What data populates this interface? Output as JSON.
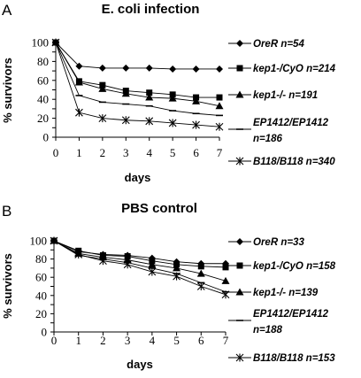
{
  "chart_data": [
    {
      "panel": "A",
      "type": "line",
      "title": "E. coli infection",
      "xlabel": "days",
      "ylabel": "% survivors",
      "x": [
        0,
        1,
        2,
        3,
        4,
        5,
        6,
        7
      ],
      "xlim": [
        0,
        7
      ],
      "ylim": [
        0,
        100
      ],
      "yticks": [
        0,
        10,
        20,
        30,
        40,
        50,
        60,
        70,
        80,
        90,
        100
      ],
      "grid": false,
      "legend_position": "right",
      "series": [
        {
          "name": "OreR n=54",
          "marker": "diamond",
          "values": [
            100,
            75,
            73,
            73,
            73,
            72,
            72,
            72
          ]
        },
        {
          "name": "kep1-/CyO n=214",
          "marker": "square",
          "values": [
            100,
            59,
            55,
            49,
            47,
            45,
            42,
            42
          ]
        },
        {
          "name": "kep1-/- n=191",
          "marker": "triangle",
          "values": [
            100,
            58,
            51,
            46,
            42,
            41,
            38,
            33
          ]
        },
        {
          "name": "EP1412/EP1412 n=186",
          "marker": "dash",
          "values": [
            100,
            44,
            37,
            35,
            33,
            28,
            25,
            23
          ]
        },
        {
          "name": "B118/B118 n=340",
          "marker": "asterisk",
          "values": [
            100,
            26,
            20,
            18,
            17,
            15,
            13,
            11
          ]
        }
      ]
    },
    {
      "panel": "B",
      "type": "line",
      "title": "PBS control",
      "xlabel": "days",
      "ylabel": "% survivors",
      "x": [
        0,
        1,
        2,
        3,
        4,
        5,
        6,
        7
      ],
      "xlim": [
        0,
        7
      ],
      "ylim": [
        0,
        100
      ],
      "yticks": [
        0,
        10,
        20,
        30,
        40,
        50,
        60,
        70,
        80,
        90,
        100
      ],
      "grid": false,
      "legend_position": "right",
      "series": [
        {
          "name": "OreR n=33",
          "marker": "diamond",
          "values": [
            100,
            88,
            85,
            84,
            81,
            77,
            75,
            75
          ]
        },
        {
          "name": "kep1-/CyO n=158",
          "marker": "square",
          "values": [
            100,
            89,
            84,
            83,
            78,
            74,
            72,
            71
          ]
        },
        {
          "name": "kep1-/- n=139",
          "marker": "triangle",
          "values": [
            100,
            86,
            82,
            79,
            74,
            70,
            64,
            56
          ]
        },
        {
          "name": "EP1412/EP1412 n=188",
          "marker": "dash",
          "values": [
            100,
            84,
            80,
            76,
            70,
            64,
            54,
            44
          ]
        },
        {
          "name": "B118/B118 n=153",
          "marker": "asterisk",
          "values": [
            100,
            85,
            78,
            74,
            66,
            61,
            50,
            41
          ]
        }
      ]
    }
  ]
}
